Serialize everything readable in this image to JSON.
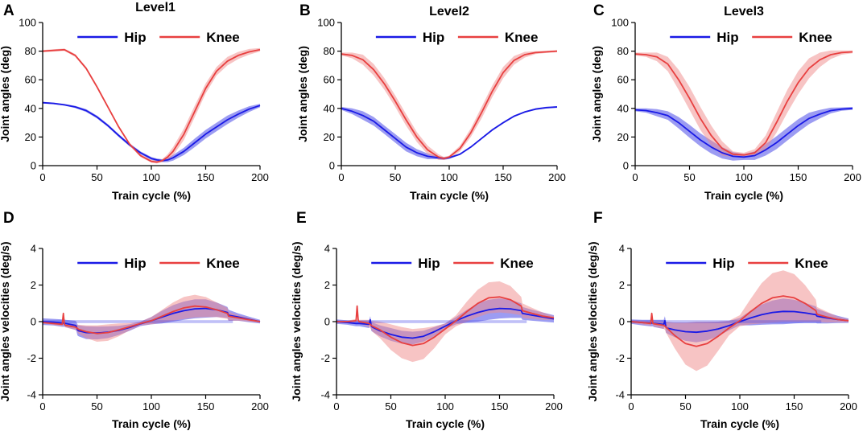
{
  "colors": {
    "hip": "#1a1ae6",
    "knee": "#e84040",
    "hip_band": "#4a4ae8",
    "knee_band": "#f08a8a",
    "axis": "#000000"
  },
  "chart_data": [
    {
      "panel": "A",
      "title": "Level1",
      "type": "line",
      "xlabel": "Train cycle (%)",
      "ylabel": "Joint angles (deg)",
      "xlim": [
        0,
        200
      ],
      "ylim": [
        0,
        100
      ],
      "xticks": [
        0,
        50,
        100,
        150,
        200
      ],
      "yticks": [
        0,
        20,
        40,
        60,
        80,
        100
      ],
      "xtick_labels": [
        "0",
        "50",
        "100",
        "150",
        "200"
      ],
      "ytick_labels": [
        "0",
        "20",
        "40",
        "60",
        "80",
        "100"
      ],
      "legend": [
        "Hip",
        "Knee"
      ],
      "legend_position": "top",
      "x": [
        0,
        10,
        20,
        30,
        40,
        50,
        60,
        70,
        80,
        90,
        100,
        105,
        110,
        115,
        120,
        130,
        140,
        150,
        160,
        170,
        180,
        190,
        200
      ],
      "series": [
        {
          "name": "Hip",
          "values": [
            44,
            43.5,
            42.5,
            41,
            38.5,
            34,
            28,
            21,
            14.5,
            9,
            5,
            4,
            3.5,
            4,
            5.5,
            10,
            16,
            22,
            27,
            32,
            36,
            39.5,
            42
          ],
          "band": [
            0.6,
            0.6,
            0.6,
            0.8,
            1,
            1,
            1,
            1,
            1,
            1,
            1,
            1,
            1,
            1.5,
            2,
            2.5,
            3,
            3,
            3,
            3,
            2.5,
            2,
            1.2
          ]
        },
        {
          "name": "Knee",
          "values": [
            80,
            80.5,
            81,
            77,
            68,
            55,
            41,
            27,
            15,
            7,
            3,
            2.5,
            3.5,
            6,
            10,
            22,
            38,
            54,
            66,
            73,
            77,
            79.5,
            81
          ],
          "band": [
            0.8,
            0.8,
            0.8,
            1,
            1,
            1,
            1,
            1,
            1,
            1,
            1,
            1,
            1,
            2,
            3,
            4,
            4,
            3.5,
            3,
            3,
            2.5,
            2,
            1.2
          ]
        }
      ]
    },
    {
      "panel": "B",
      "title": "Level2",
      "type": "line",
      "xlabel": "Train cycle (%)",
      "ylabel": "Joint angles (deg)",
      "xlim": [
        0,
        200
      ],
      "ylim": [
        0,
        100
      ],
      "xticks": [
        0,
        50,
        100,
        150,
        200
      ],
      "yticks": [
        0,
        20,
        40,
        60,
        80,
        100
      ],
      "xtick_labels": [
        "0",
        "50",
        "100",
        "150",
        "200"
      ],
      "ytick_labels": [
        "0",
        "20",
        "40",
        "60",
        "80",
        "100"
      ],
      "legend": [
        "Hip",
        "Knee"
      ],
      "legend_position": "top",
      "x": [
        0,
        10,
        20,
        30,
        40,
        50,
        60,
        70,
        80,
        90,
        95,
        100,
        110,
        120,
        130,
        140,
        150,
        160,
        170,
        180,
        190,
        200
      ],
      "series": [
        {
          "name": "Hip",
          "values": [
            40,
            38,
            35,
            31,
            25,
            19,
            13,
            9,
            6.5,
            5.5,
            5,
            5.5,
            8,
            13,
            19,
            25,
            30,
            34.5,
            37.5,
            39.5,
            40.5,
            41
          ],
          "band": [
            1,
            2,
            3,
            3,
            3,
            3,
            3,
            2.5,
            2,
            1,
            1,
            0.8,
            0.6,
            0.6,
            0.6,
            0.6,
            0.6,
            0.6,
            0.6,
            0.6,
            0.6,
            0.6
          ]
        },
        {
          "name": "Knee",
          "values": [
            78,
            77,
            74,
            67,
            57,
            45,
            32,
            20,
            11,
            6,
            5,
            6,
            12,
            23,
            37,
            52,
            65,
            73.5,
            77.5,
            79,
            79.5,
            80
          ],
          "band": [
            1,
            2,
            3.5,
            4,
            4,
            4,
            4,
            3.5,
            3,
            2,
            1,
            1,
            2,
            3,
            4,
            4,
            4,
            3,
            2,
            1,
            0.8,
            0.8
          ]
        }
      ]
    },
    {
      "panel": "C",
      "title": "Level3",
      "type": "line",
      "xlabel": "Train cycle (%)",
      "ylabel": "Joint angles (deg)",
      "xlim": [
        0,
        200
      ],
      "ylim": [
        0,
        100
      ],
      "xticks": [
        0,
        50,
        100,
        150,
        200
      ],
      "yticks": [
        0,
        20,
        40,
        60,
        80,
        100
      ],
      "xtick_labels": [
        "0",
        "50",
        "100",
        "150",
        "200"
      ],
      "ytick_labels": [
        "0",
        "20",
        "40",
        "60",
        "80",
        "100"
      ],
      "legend": [
        "Hip",
        "Knee"
      ],
      "legend_position": "top",
      "x": [
        0,
        10,
        20,
        30,
        40,
        50,
        60,
        70,
        80,
        90,
        100,
        110,
        120,
        130,
        140,
        150,
        160,
        170,
        180,
        190,
        200
      ],
      "series": [
        {
          "name": "Hip",
          "values": [
            39,
            38.5,
            37,
            35,
            30,
            24,
            18,
            13,
            9,
            6.5,
            6,
            7,
            11,
            16,
            22,
            28,
            33,
            36,
            38.5,
            39.5,
            40
          ],
          "band": [
            1,
            1.5,
            2.5,
            3,
            4,
            4.5,
            4.5,
            4.5,
            4,
            3,
            2,
            3,
            4,
            4.5,
            4.5,
            4.5,
            4,
            3,
            2,
            1.2,
            1
          ]
        },
        {
          "name": "Knee",
          "values": [
            78,
            77.5,
            76,
            71,
            60,
            47,
            33,
            21,
            12,
            8,
            7.5,
            9,
            16,
            30,
            45,
            58,
            68,
            74,
            77.5,
            79,
            79.5
          ],
          "band": [
            1,
            1.5,
            3,
            5,
            7,
            8,
            8,
            7,
            5,
            2,
            1.5,
            2.5,
            5,
            7,
            8,
            8,
            7,
            5,
            3,
            1.5,
            1
          ]
        }
      ]
    },
    {
      "panel": "D",
      "title": "",
      "type": "line",
      "xlabel": "Train cycle (%)",
      "ylabel": "Joint angles velocities (deg/s)",
      "xlim": [
        0,
        200
      ],
      "ylim": [
        -4,
        4
      ],
      "xticks": [
        0,
        50,
        100,
        150,
        200
      ],
      "yticks": [
        -4,
        -2,
        0,
        2,
        4
      ],
      "xtick_labels": [
        "0",
        "50",
        "100",
        "150",
        "200"
      ],
      "ytick_labels": [
        "-4",
        "-2",
        "0",
        "2",
        "4"
      ],
      "legend": [
        "Hip",
        "Knee"
      ],
      "legend_position": "top",
      "x": [
        0,
        10,
        18,
        19,
        20,
        21,
        30,
        31,
        32,
        33,
        40,
        50,
        60,
        70,
        80,
        90,
        100,
        110,
        120,
        130,
        140,
        150,
        160,
        170,
        171,
        180,
        190,
        200
      ],
      "series": [
        {
          "name": "Hip",
          "values": [
            0,
            -0.03,
            -0.08,
            -0.08,
            -0.08,
            -0.1,
            -0.2,
            -0.25,
            -0.45,
            -0.5,
            -0.6,
            -0.62,
            -0.58,
            -0.48,
            -0.32,
            -0.12,
            0.05,
            0.25,
            0.45,
            0.6,
            0.7,
            0.72,
            0.65,
            0.5,
            0.35,
            0.25,
            0.12,
            0
          ],
          "band": [
            0.18,
            0.18,
            0.2,
            0.2,
            0.2,
            0.2,
            0.25,
            0.25,
            0.3,
            0.3,
            0.35,
            0.35,
            0.32,
            0.25,
            0.18,
            0.12,
            0.2,
            0.35,
            0.45,
            0.5,
            0.52,
            0.5,
            0.4,
            0.3,
            0.3,
            0.2,
            0.15,
            0.1
          ]
        },
        {
          "name": "Knee",
          "values": [
            -0.05,
            -0.1,
            -0.15,
            0.45,
            -0.15,
            -0.2,
            -0.3,
            -0.32,
            -0.38,
            -0.42,
            -0.55,
            -0.65,
            -0.6,
            -0.45,
            -0.28,
            -0.1,
            0.05,
            0.3,
            0.55,
            0.75,
            0.85,
            0.8,
            0.65,
            0.45,
            0.3,
            0.2,
            0.1,
            0
          ],
          "band": [
            0.05,
            0.08,
            0.1,
            0.1,
            0.1,
            0.12,
            0.15,
            0.15,
            0.2,
            0.25,
            0.35,
            0.45,
            0.45,
            0.35,
            0.2,
            0.1,
            0.2,
            0.35,
            0.5,
            0.6,
            0.62,
            0.55,
            0.4,
            0.3,
            0.25,
            0.15,
            0.1,
            0.05
          ]
        }
      ]
    },
    {
      "panel": "E",
      "title": "",
      "type": "line",
      "xlabel": "Train cycle (%)",
      "ylabel": "Joint angles velocities (deg/s)",
      "xlim": [
        0,
        200
      ],
      "ylim": [
        -4,
        4
      ],
      "xticks": [
        0,
        50,
        100,
        150,
        200
      ],
      "yticks": [
        -4,
        -2,
        0,
        2,
        4
      ],
      "xtick_labels": [
        "0",
        "50",
        "100",
        "150",
        "200"
      ],
      "ytick_labels": [
        "-4",
        "-2",
        "0",
        "2",
        "4"
      ],
      "legend": [
        "Hip",
        "Knee"
      ],
      "legend_position": "top",
      "x": [
        0,
        10,
        18,
        19,
        20,
        21,
        30,
        31,
        32,
        33,
        40,
        50,
        60,
        70,
        80,
        90,
        100,
        110,
        120,
        130,
        140,
        150,
        160,
        170,
        171,
        180,
        190,
        200
      ],
      "series": [
        {
          "name": "Hip",
          "values": [
            0,
            -0.05,
            -0.1,
            -0.1,
            -0.1,
            -0.1,
            -0.15,
            0.1,
            -0.25,
            -0.3,
            -0.5,
            -0.7,
            -0.85,
            -0.9,
            -0.8,
            -0.55,
            -0.25,
            0.05,
            0.3,
            0.5,
            0.65,
            0.72,
            0.7,
            0.6,
            0.45,
            0.35,
            0.25,
            0.15
          ],
          "band": [
            0.12,
            0.12,
            0.15,
            0.15,
            0.15,
            0.15,
            0.2,
            0.2,
            0.25,
            0.25,
            0.3,
            0.35,
            0.35,
            0.35,
            0.3,
            0.25,
            0.15,
            0.2,
            0.35,
            0.5,
            0.55,
            0.55,
            0.5,
            0.4,
            0.35,
            0.3,
            0.25,
            0.2
          ]
        },
        {
          "name": "Knee",
          "values": [
            0,
            0,
            0.05,
            0.85,
            0.05,
            0,
            -0.1,
            -0.15,
            -0.2,
            -0.25,
            -0.45,
            -0.85,
            -1.15,
            -1.3,
            -1.2,
            -0.85,
            -0.4,
            0.05,
            0.55,
            1.0,
            1.3,
            1.35,
            1.2,
            0.85,
            0.6,
            0.45,
            0.3,
            0.2
          ],
          "band": [
            0.05,
            0.05,
            0.1,
            0.1,
            0.1,
            0.1,
            0.2,
            0.2,
            0.25,
            0.3,
            0.45,
            0.7,
            0.85,
            0.9,
            0.85,
            0.6,
            0.3,
            0.3,
            0.55,
            0.75,
            0.85,
            0.85,
            0.75,
            0.5,
            0.4,
            0.3,
            0.2,
            0.1
          ]
        }
      ]
    },
    {
      "panel": "F",
      "title": "",
      "type": "line",
      "xlabel": "Train cycle (%)",
      "ylabel": "Joint angles velocities (deg/s)",
      "xlim": [
        0,
        200
      ],
      "ylim": [
        -4,
        4
      ],
      "xticks": [
        0,
        50,
        100,
        150,
        200
      ],
      "yticks": [
        -4,
        -2,
        0,
        2,
        4
      ],
      "xtick_labels": [
        "0",
        "50",
        "100",
        "150",
        "200"
      ],
      "ytick_labels": [
        "-4",
        "-2",
        "0",
        "2",
        "4"
      ],
      "legend": [
        "Hip",
        "Knee"
      ],
      "legend_position": "top",
      "x": [
        0,
        10,
        18,
        19,
        20,
        21,
        30,
        31,
        32,
        33,
        40,
        50,
        60,
        70,
        80,
        90,
        100,
        110,
        120,
        130,
        140,
        150,
        160,
        170,
        171,
        180,
        190,
        200
      ],
      "series": [
        {
          "name": "Hip",
          "values": [
            0,
            -0.05,
            -0.08,
            -0.08,
            -0.08,
            -0.1,
            -0.15,
            0.05,
            -0.3,
            -0.35,
            -0.45,
            -0.55,
            -0.58,
            -0.52,
            -0.4,
            -0.22,
            0,
            0.2,
            0.38,
            0.5,
            0.56,
            0.55,
            0.48,
            0.38,
            0.3,
            0.2,
            0.12,
            0.05
          ],
          "band": [
            0.12,
            0.15,
            0.18,
            0.18,
            0.18,
            0.2,
            0.25,
            0.25,
            0.3,
            0.3,
            0.4,
            0.5,
            0.55,
            0.5,
            0.4,
            0.25,
            0.2,
            0.4,
            0.55,
            0.65,
            0.7,
            0.65,
            0.55,
            0.45,
            0.4,
            0.3,
            0.2,
            0.12
          ]
        },
        {
          "name": "Knee",
          "values": [
            0,
            -0.05,
            -0.1,
            0.45,
            -0.1,
            -0.12,
            -0.2,
            -0.25,
            -0.3,
            -0.35,
            -0.75,
            -1.2,
            -1.35,
            -1.2,
            -0.8,
            -0.35,
            0.05,
            0.55,
            1.0,
            1.3,
            1.4,
            1.3,
            1.0,
            0.6,
            0.4,
            0.25,
            0.12,
            0.05
          ],
          "band": [
            0.08,
            0.1,
            0.12,
            0.12,
            0.12,
            0.15,
            0.2,
            0.2,
            0.3,
            0.35,
            0.7,
            1.15,
            1.35,
            1.2,
            0.8,
            0.4,
            0.3,
            0.7,
            1.1,
            1.35,
            1.4,
            1.3,
            1.0,
            0.6,
            0.4,
            0.3,
            0.15,
            0.08
          ]
        }
      ]
    }
  ]
}
